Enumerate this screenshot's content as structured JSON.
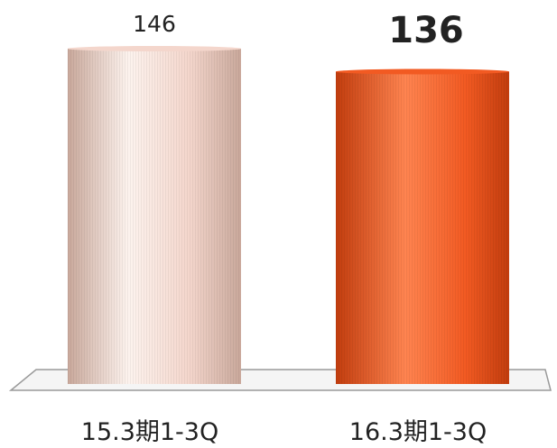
{
  "chart_data": {
    "type": "bar",
    "categories": [
      "15.3期1-3Q",
      "16.3期1-3Q"
    ],
    "values": [
      146,
      136
    ],
    "value_labels": [
      "146",
      "136"
    ],
    "highlight_index": 1,
    "colors": {
      "bar_muted": "#f4d6cc",
      "bar_muted_dark": "#c9a89b",
      "bar_muted_light": "#fdf3ee",
      "bar_highlight": "#f25a22",
      "bar_highlight_dark": "#c23d0e",
      "bar_highlight_light": "#ff8450",
      "highlight_label": "#f35a1e",
      "floor_stroke": "#9a9a9a"
    },
    "ylim": [
      0,
      146
    ],
    "grid": false,
    "legend": "none",
    "title": "",
    "xlabel": "",
    "ylabel": ""
  }
}
